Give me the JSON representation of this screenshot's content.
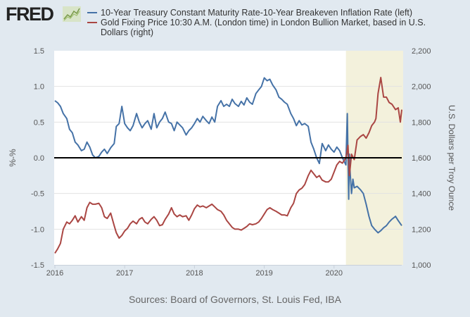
{
  "header": {
    "logo_text": "FRED",
    "logo_icon": "line-chart-icon"
  },
  "legend": [
    {
      "label": "10-Year Treasury Constant Maturity Rate-10-Year Breakeven Inflation Rate (left)",
      "color": "#4572a7"
    },
    {
      "label": "Gold Fixing Price 10:30 A.M. (London time) in London Bullion Market, based in U.S.",
      "color": "#aa4643"
    },
    {
      "label": "Dollars (right)",
      "color": ""
    }
  ],
  "footer": {
    "sources": "Sources: Board of Governors, St. Louis Fed, IBA"
  },
  "chart_data": {
    "type": "line",
    "title": "",
    "xlabel": "",
    "ylabel_left": "%-%",
    "ylabel_right": "U.S. Dollars per Troy Ounce",
    "x_range": [
      2015.99,
      2020.97
    ],
    "ylim_left": [
      -1.5,
      1.5
    ],
    "ylim_right": [
      1000,
      2200
    ],
    "x_ticks": [
      {
        "value": 2016,
        "label": "2016"
      },
      {
        "value": 2017,
        "label": "2017"
      },
      {
        "value": 2018,
        "label": "2018"
      },
      {
        "value": 2019,
        "label": "2019"
      },
      {
        "value": 2020,
        "label": "2020"
      }
    ],
    "y_ticks_left": [
      {
        "value": 1.5,
        "label": "1.5"
      },
      {
        "value": 1.0,
        "label": "1.0"
      },
      {
        "value": 0.5,
        "label": "0.5"
      },
      {
        "value": 0.0,
        "label": "0.0"
      },
      {
        "value": -0.5,
        "label": "-0.5"
      },
      {
        "value": -1.0,
        "label": "-1.0"
      },
      {
        "value": -1.5,
        "label": "-1.5"
      }
    ],
    "y_ticks_right": [
      {
        "value": 2200,
        "label": "2,200"
      },
      {
        "value": 2000,
        "label": "2,000"
      },
      {
        "value": 1800,
        "label": "1,800"
      },
      {
        "value": 1600,
        "label": "1,600"
      },
      {
        "value": 1400,
        "label": "1,400"
      },
      {
        "value": 1200,
        "label": "1,200"
      },
      {
        "value": 1000,
        "label": "1,000"
      }
    ],
    "grid": true,
    "zero_line_left": 0,
    "recession_shading": [
      {
        "start": 2020.17,
        "end": 2020.97
      }
    ],
    "series": [
      {
        "name": "10-Year Treasury Constant Maturity Rate-10-Year Breakeven Inflation Rate",
        "axis": "left",
        "color": "#4572a7",
        "x": [
          2016.0,
          2016.04,
          2016.08,
          2016.12,
          2016.17,
          2016.21,
          2016.25,
          2016.29,
          2016.33,
          2016.38,
          2016.42,
          2016.46,
          2016.5,
          2016.54,
          2016.58,
          2016.63,
          2016.67,
          2016.71,
          2016.75,
          2016.8,
          2016.85,
          2016.88,
          2016.92,
          2016.96,
          2017.0,
          2017.04,
          2017.08,
          2017.12,
          2017.17,
          2017.21,
          2017.25,
          2017.29,
          2017.33,
          2017.38,
          2017.42,
          2017.46,
          2017.5,
          2017.54,
          2017.58,
          2017.63,
          2017.67,
          2017.71,
          2017.75,
          2017.79,
          2017.83,
          2017.88,
          2017.92,
          2017.96,
          2018.0,
          2018.04,
          2018.08,
          2018.12,
          2018.17,
          2018.21,
          2018.25,
          2018.29,
          2018.33,
          2018.38,
          2018.42,
          2018.46,
          2018.5,
          2018.54,
          2018.58,
          2018.63,
          2018.67,
          2018.71,
          2018.75,
          2018.79,
          2018.83,
          2018.88,
          2018.92,
          2018.96,
          2019.0,
          2019.04,
          2019.08,
          2019.12,
          2019.17,
          2019.21,
          2019.25,
          2019.29,
          2019.33,
          2019.38,
          2019.42,
          2019.46,
          2019.5,
          2019.54,
          2019.58,
          2019.63,
          2019.67,
          2019.71,
          2019.75,
          2019.79,
          2019.83,
          2019.88,
          2019.92,
          2019.96,
          2020.0,
          2020.04,
          2020.08,
          2020.12,
          2020.17,
          2020.19,
          2020.21,
          2020.22,
          2020.23,
          2020.25,
          2020.27,
          2020.29,
          2020.33,
          2020.38,
          2020.42,
          2020.46,
          2020.5,
          2020.54,
          2020.58,
          2020.63,
          2020.67,
          2020.71,
          2020.75,
          2020.79,
          2020.83,
          2020.88,
          2020.92,
          2020.97
        ],
        "values": [
          0.8,
          0.77,
          0.72,
          0.62,
          0.55,
          0.4,
          0.35,
          0.22,
          0.18,
          0.1,
          0.12,
          0.22,
          0.15,
          0.04,
          0.0,
          0.02,
          0.08,
          0.12,
          0.06,
          0.14,
          0.2,
          0.44,
          0.48,
          0.72,
          0.48,
          0.42,
          0.38,
          0.45,
          0.62,
          0.5,
          0.42,
          0.48,
          0.52,
          0.4,
          0.62,
          0.42,
          0.5,
          0.55,
          0.64,
          0.5,
          0.48,
          0.38,
          0.5,
          0.46,
          0.42,
          0.32,
          0.38,
          0.42,
          0.48,
          0.55,
          0.5,
          0.58,
          0.52,
          0.48,
          0.57,
          0.5,
          0.72,
          0.8,
          0.72,
          0.75,
          0.72,
          0.82,
          0.76,
          0.72,
          0.79,
          0.74,
          0.84,
          0.78,
          0.75,
          0.9,
          0.95,
          1.0,
          1.12,
          1.08,
          1.1,
          1.02,
          0.95,
          0.85,
          0.82,
          0.78,
          0.75,
          0.62,
          0.55,
          0.45,
          0.52,
          0.46,
          0.48,
          0.44,
          0.22,
          0.12,
          0.0,
          -0.08,
          0.2,
          0.1,
          0.18,
          0.12,
          0.08,
          0.15,
          0.1,
          0.0,
          -0.1,
          0.62,
          -0.58,
          0.05,
          -0.2,
          -0.5,
          -0.3,
          -0.42,
          -0.4,
          -0.45,
          -0.5,
          -0.65,
          -0.82,
          -0.95,
          -1.0,
          -1.05,
          -1.02,
          -0.98,
          -0.95,
          -0.9,
          -0.86,
          -0.82,
          -0.88,
          -0.95
        ]
      },
      {
        "name": "Gold Fixing Price 10:30 A.M. (London time) in London Bullion Market",
        "axis": "right",
        "color": "#aa4643",
        "x": [
          2016.0,
          2016.04,
          2016.08,
          2016.12,
          2016.17,
          2016.21,
          2016.25,
          2016.29,
          2016.33,
          2016.38,
          2016.42,
          2016.46,
          2016.5,
          2016.54,
          2016.58,
          2016.63,
          2016.67,
          2016.71,
          2016.75,
          2016.8,
          2016.85,
          2016.88,
          2016.92,
          2016.96,
          2017.0,
          2017.04,
          2017.08,
          2017.12,
          2017.17,
          2017.21,
          2017.25,
          2017.29,
          2017.33,
          2017.38,
          2017.42,
          2017.46,
          2017.5,
          2017.54,
          2017.58,
          2017.63,
          2017.67,
          2017.71,
          2017.75,
          2017.79,
          2017.83,
          2017.88,
          2017.92,
          2017.96,
          2018.0,
          2018.04,
          2018.08,
          2018.12,
          2018.17,
          2018.21,
          2018.25,
          2018.29,
          2018.33,
          2018.38,
          2018.42,
          2018.46,
          2018.5,
          2018.54,
          2018.58,
          2018.63,
          2018.67,
          2018.71,
          2018.75,
          2018.79,
          2018.83,
          2018.88,
          2018.92,
          2018.96,
          2019.0,
          2019.04,
          2019.08,
          2019.12,
          2019.17,
          2019.21,
          2019.25,
          2019.29,
          2019.33,
          2019.38,
          2019.42,
          2019.46,
          2019.5,
          2019.54,
          2019.58,
          2019.63,
          2019.67,
          2019.71,
          2019.75,
          2019.79,
          2019.83,
          2019.88,
          2019.92,
          2019.96,
          2020.0,
          2020.04,
          2020.08,
          2020.12,
          2020.17,
          2020.2,
          2020.22,
          2020.25,
          2020.29,
          2020.33,
          2020.38,
          2020.42,
          2020.46,
          2020.5,
          2020.54,
          2020.58,
          2020.6,
          2020.63,
          2020.67,
          2020.71,
          2020.75,
          2020.79,
          2020.83,
          2020.88,
          2020.92,
          2020.95,
          2020.97
        ],
        "values": [
          1065,
          1090,
          1120,
          1200,
          1240,
          1230,
          1250,
          1275,
          1240,
          1270,
          1250,
          1320,
          1350,
          1340,
          1340,
          1345,
          1320,
          1270,
          1260,
          1290,
          1220,
          1180,
          1150,
          1165,
          1190,
          1205,
          1230,
          1245,
          1230,
          1255,
          1265,
          1240,
          1230,
          1255,
          1270,
          1250,
          1220,
          1225,
          1255,
          1285,
          1320,
          1285,
          1270,
          1280,
          1270,
          1275,
          1250,
          1280,
          1315,
          1335,
          1325,
          1330,
          1320,
          1330,
          1340,
          1325,
          1310,
          1300,
          1280,
          1250,
          1230,
          1210,
          1200,
          1200,
          1195,
          1205,
          1215,
          1230,
          1225,
          1230,
          1240,
          1260,
          1285,
          1310,
          1320,
          1310,
          1300,
          1290,
          1280,
          1280,
          1275,
          1320,
          1345,
          1400,
          1420,
          1430,
          1450,
          1500,
          1530,
          1510,
          1490,
          1500,
          1475,
          1465,
          1465,
          1480,
          1520,
          1560,
          1580,
          1570,
          1600,
          1670,
          1500,
          1620,
          1590,
          1700,
          1720,
          1730,
          1710,
          1740,
          1780,
          1800,
          1820,
          1960,
          2050,
          1940,
          1940,
          1910,
          1900,
          1870,
          1880,
          1800,
          1870
        ]
      }
    ]
  }
}
